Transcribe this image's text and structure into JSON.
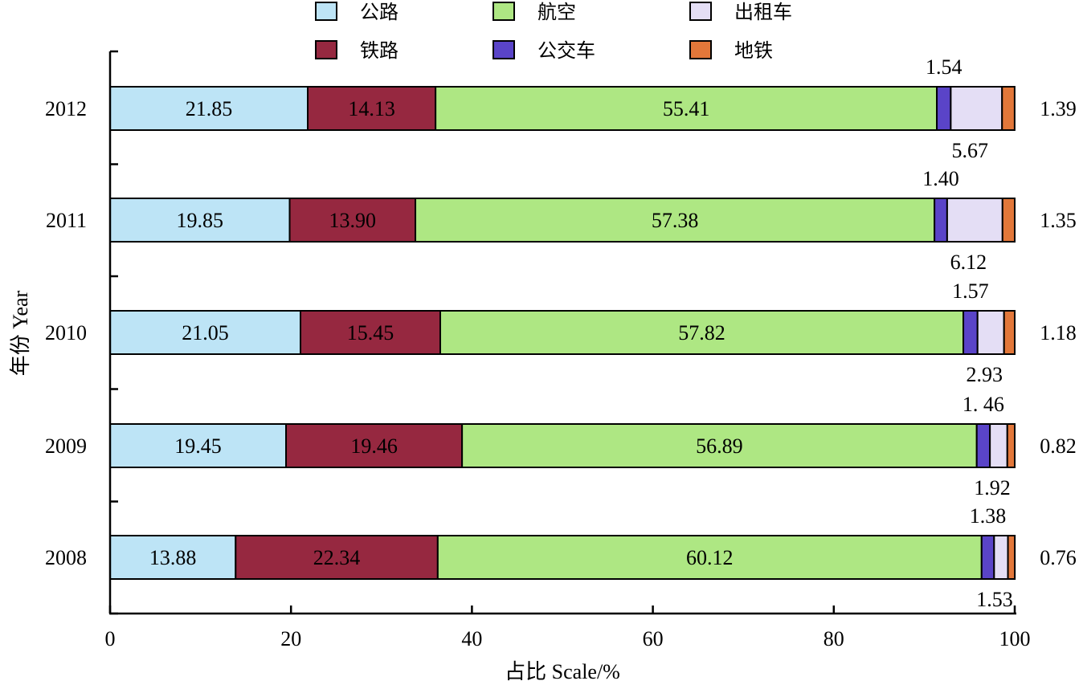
{
  "chart_data": {
    "type": "bar",
    "orientation": "horizontal",
    "stacked": true,
    "categories": [
      "2012",
      "2011",
      "2010",
      "2009",
      "2008"
    ],
    "series": [
      {
        "name": "公路",
        "values": [
          21.85,
          19.85,
          21.05,
          19.45,
          13.88
        ],
        "color": "#bde4f6"
      },
      {
        "name": "铁路",
        "values": [
          14.13,
          13.9,
          15.45,
          19.46,
          22.34
        ],
        "color": "#962840"
      },
      {
        "name": "航空",
        "values": [
          55.41,
          57.38,
          57.82,
          56.89,
          60.12
        ],
        "color": "#aee783"
      },
      {
        "name": "公交车",
        "values": [
          1.54,
          1.4,
          1.57,
          1.46,
          1.38
        ],
        "color": "#5a44c8"
      },
      {
        "name": "出租车",
        "values": [
          5.67,
          6.12,
          2.93,
          1.92,
          1.53
        ],
        "color": "#e4def5"
      },
      {
        "name": "地铁",
        "values": [
          1.39,
          1.35,
          1.18,
          0.82,
          0.76
        ],
        "color": "#e2773a"
      }
    ],
    "value_labels": {
      "inside": [
        "21.85",
        "14.13",
        "55.41",
        "19.85",
        "13.90",
        "57.38",
        "21.05",
        "15.45",
        "57.82",
        "19.45",
        "19.46",
        "56.89",
        "13.88",
        "22.34",
        "60.12"
      ],
      "bus": [
        "1.54",
        "1.40",
        "1.57",
        "1. 46",
        "1.38"
      ],
      "taxi": [
        "5.67",
        "6.12",
        "2.93",
        "1.92",
        "1.53"
      ],
      "metro": [
        "1.39",
        "1.35",
        "1.18",
        "0.82",
        "0.76"
      ]
    },
    "xlabel": "占比 Scale/%",
    "ylabel": "年份 Year",
    "xlim": [
      0,
      100
    ],
    "xticks": [
      "0",
      "20",
      "40",
      "60",
      "80",
      "100"
    ],
    "legend_position": "top",
    "grid": false
  }
}
